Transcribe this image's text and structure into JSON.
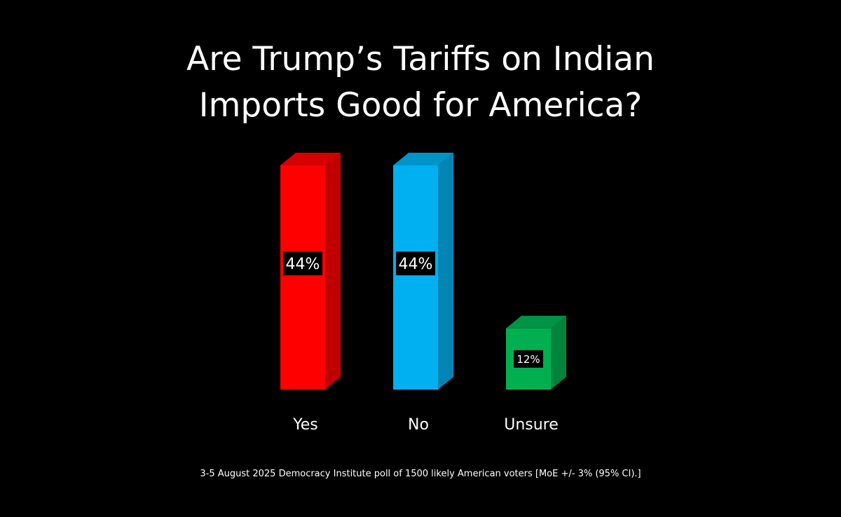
{
  "chart_data": {
    "type": "bar",
    "title": "Are Trump’s Tariffs on Indian Imports Good for America?",
    "title_lines": [
      "Are Trump’s Tariffs on Indian",
      "Imports Good for America?"
    ],
    "categories": [
      "Yes",
      "No",
      "Unsure"
    ],
    "values": [
      44,
      44,
      12
    ],
    "value_labels": [
      "44%",
      "44%",
      "12%"
    ],
    "colors": [
      {
        "front": "#ff0000",
        "side": "#c00000",
        "top": "#d60000"
      },
      {
        "front": "#00b0f0",
        "side": "#0085b5",
        "top": "#0094c9"
      },
      {
        "front": "#00b050",
        "side": "#00843c",
        "top": "#009444"
      }
    ],
    "ylim": [
      0,
      44
    ],
    "grid": false,
    "legend": "none",
    "style": "3d-column"
  },
  "footnote": "3-5 August 2025 Democracy Institute poll of 1500 likely American voters [MoE +/- 3% (95% CI).]"
}
